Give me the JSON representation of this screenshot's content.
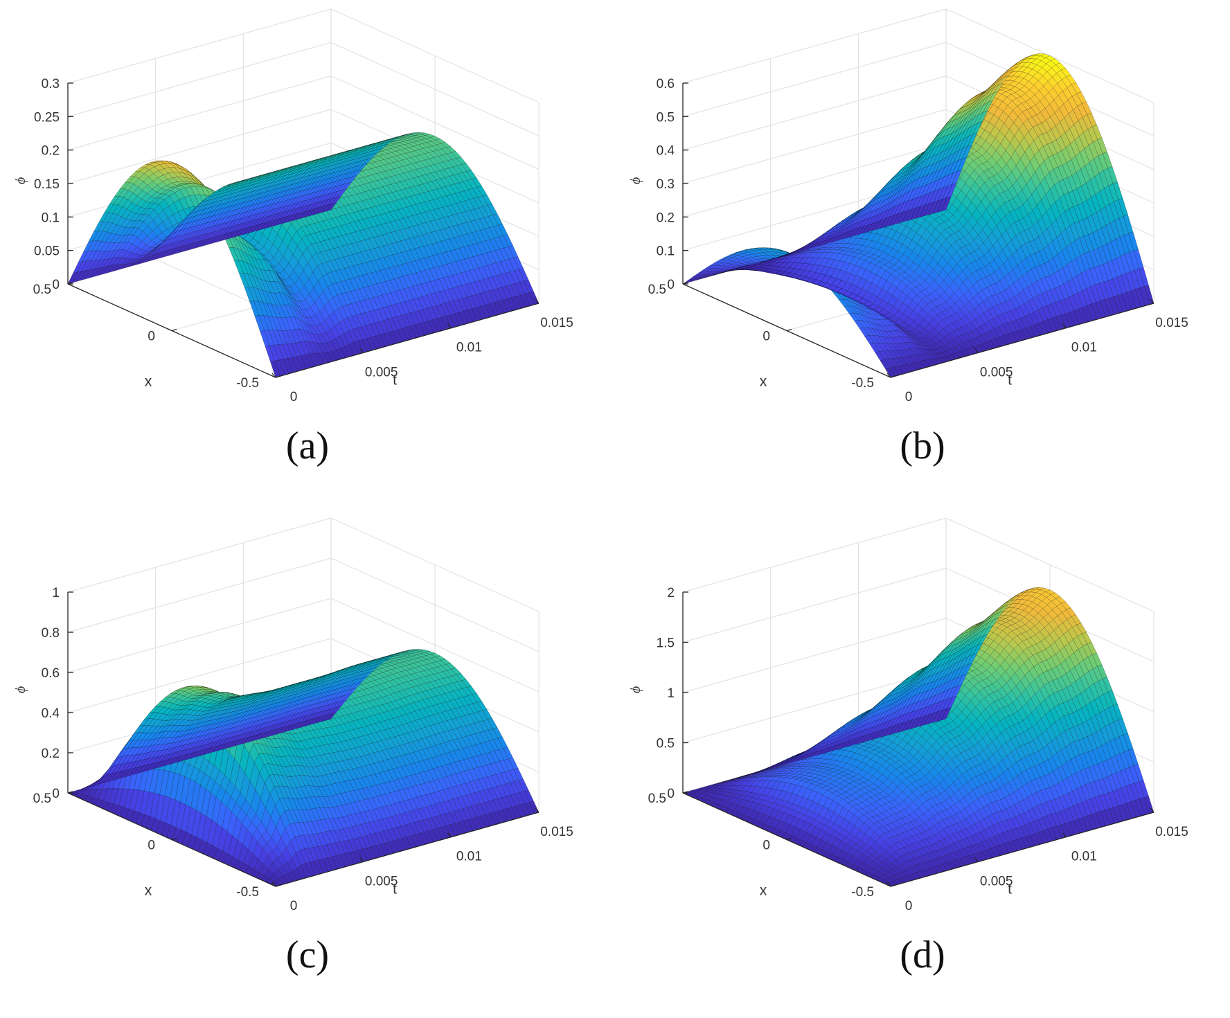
{
  "chart_data": [
    {
      "type": "surface",
      "caption": "(a)",
      "xlabel": "t",
      "ylabel": "x",
      "zlabel": "ϕ",
      "xlim": [
        0,
        0.015
      ],
      "ylim": [
        -0.5,
        0.5
      ],
      "zlim": [
        0,
        0.3
      ],
      "x_ticks": [
        "0",
        "0.005",
        "0.01",
        "0.015"
      ],
      "y_ticks": [
        "-0.5",
        "0",
        "0.5"
      ],
      "z_ticks": [
        "0",
        "0.05",
        "0.1",
        "0.15",
        "0.2",
        "0.25",
        "0.3"
      ],
      "peak_profile": {
        "t": [
          0,
          0.002,
          0.0035,
          0.005,
          0.0075,
          0.01,
          0.0125,
          0.015
        ],
        "max_phi": [
          0.25,
          0.2,
          0.12,
          0.18,
          0.18,
          0.18,
          0.18,
          0.18
        ]
      },
      "colormap": "parula",
      "grid": true
    },
    {
      "type": "surface",
      "caption": "(b)",
      "xlabel": "t",
      "ylabel": "x",
      "zlabel": "ϕ",
      "xlim": [
        0,
        0.015
      ],
      "ylim": [
        -0.5,
        0.5
      ],
      "zlim": [
        0,
        0.6
      ],
      "x_ticks": [
        "0",
        "0.005",
        "0.01",
        "0.015"
      ],
      "y_ticks": [
        "-0.5",
        "0",
        "0.5"
      ],
      "z_ticks": [
        "0",
        "0.1",
        "0.2",
        "0.3",
        "0.4",
        "0.5",
        "0.6"
      ],
      "peak_profile": {
        "t": [
          0,
          0.002,
          0.0035,
          0.005,
          0.0075,
          0.01,
          0.0125,
          0.015
        ],
        "max_phi": [
          0.23,
          0.15,
          0.05,
          0.14,
          0.27,
          0.4,
          0.53,
          0.6
        ]
      },
      "colormap": "parula",
      "grid": true
    },
    {
      "type": "surface",
      "caption": "(c)",
      "xlabel": "t",
      "ylabel": "x",
      "zlabel": "ϕ",
      "xlim": [
        0,
        0.015
      ],
      "ylim": [
        -0.5,
        0.5
      ],
      "zlim": [
        0,
        1
      ],
      "x_ticks": [
        "0",
        "0.005",
        "0.01",
        "0.015"
      ],
      "y_ticks": [
        "-0.5",
        "0",
        "0.5"
      ],
      "z_ticks": [
        "0",
        "0.2",
        "0.4",
        "0.6",
        "0.8",
        "1"
      ],
      "peak_profile": {
        "t": [
          0,
          0.001,
          0.002,
          0.0035,
          0.005,
          0.0075,
          0.01,
          0.0125,
          0.015
        ],
        "max_phi": [
          0,
          0.35,
          0.7,
          0.63,
          0.57,
          0.55,
          0.55,
          0.56,
          0.56
        ]
      },
      "colormap": "parula",
      "grid": true
    },
    {
      "type": "surface",
      "caption": "(d)",
      "xlabel": "t",
      "ylabel": "x",
      "zlabel": "ϕ",
      "xlim": [
        0,
        0.015
      ],
      "ylim": [
        -0.5,
        0.5
      ],
      "zlim": [
        0,
        2
      ],
      "x_ticks": [
        "0",
        "0.005",
        "0.01",
        "0.015"
      ],
      "y_ticks": [
        "-0.5",
        "0",
        "0.5"
      ],
      "z_ticks": [
        "0",
        "0.5",
        "1",
        "1.5",
        "2"
      ],
      "peak_profile": {
        "t": [
          0,
          0.001,
          0.002,
          0.0035,
          0.005,
          0.0075,
          0.01,
          0.0125,
          0.015
        ],
        "max_phi": [
          0,
          0.2,
          0.42,
          0.48,
          0.65,
          0.95,
          1.25,
          1.55,
          1.75
        ]
      },
      "colormap": "parula",
      "grid": true
    }
  ]
}
